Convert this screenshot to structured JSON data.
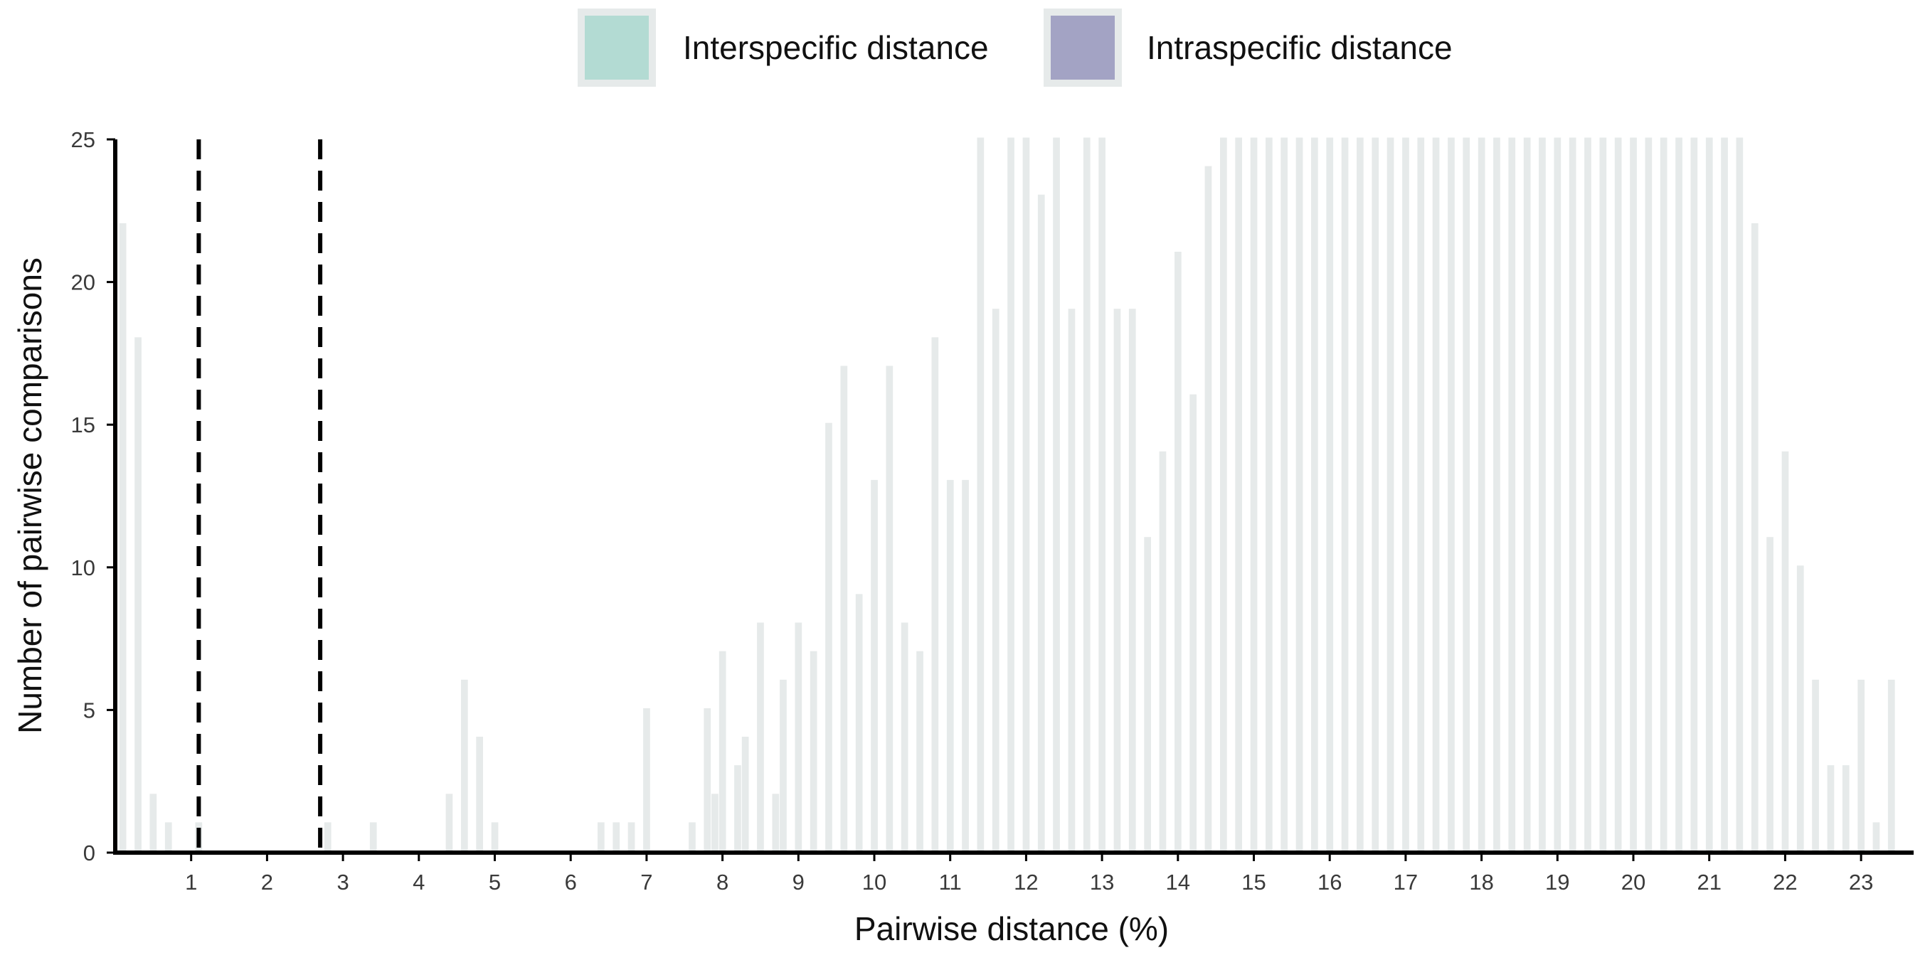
{
  "chart_data": {
    "type": "bar",
    "xlabel": "Pairwise distance (%)",
    "ylabel": "Number of pairwise comparisons",
    "xlim": [
      0,
      23.7
    ],
    "ylim": [
      0,
      25
    ],
    "x_ticks": [
      1,
      2,
      3,
      4,
      5,
      6,
      7,
      8,
      9,
      10,
      11,
      12,
      13,
      14,
      15,
      16,
      17,
      18,
      19,
      20,
      21,
      22,
      23
    ],
    "y_ticks": [
      0,
      5,
      10,
      15,
      20,
      25
    ],
    "bin_width": 0.1,
    "grid": false,
    "legend_placement": "top-center",
    "threshold_lines": [
      1.1,
      2.7
    ],
    "series": [
      {
        "name": "Interspecific distance",
        "color": "#b3dbd3",
        "values": [
          [
            2.8,
            1
          ],
          [
            3.4,
            1
          ],
          [
            4.4,
            2
          ],
          [
            4.6,
            6
          ],
          [
            4.8,
            4
          ],
          [
            5.0,
            1
          ],
          [
            6.4,
            1
          ],
          [
            6.6,
            1
          ],
          [
            6.8,
            1
          ],
          [
            7.0,
            5
          ],
          [
            7.6,
            1
          ],
          [
            7.8,
            5
          ],
          [
            7.9,
            2
          ],
          [
            8.0,
            7
          ],
          [
            8.2,
            3
          ],
          [
            8.3,
            4
          ],
          [
            8.5,
            8
          ],
          [
            8.7,
            2
          ],
          [
            8.8,
            6
          ],
          [
            9.0,
            8
          ],
          [
            9.2,
            7
          ],
          [
            9.4,
            15
          ],
          [
            9.6,
            17
          ],
          [
            9.8,
            9
          ],
          [
            10.0,
            13
          ],
          [
            10.2,
            17
          ],
          [
            10.4,
            8
          ],
          [
            10.6,
            7
          ],
          [
            10.8,
            18
          ],
          [
            11.0,
            13
          ],
          [
            11.2,
            13
          ],
          [
            11.4,
            25
          ],
          [
            11.6,
            19
          ],
          [
            11.8,
            25
          ],
          [
            12.0,
            25
          ],
          [
            12.2,
            23
          ],
          [
            12.4,
            25
          ],
          [
            12.6,
            19
          ],
          [
            12.8,
            25
          ],
          [
            13.0,
            25
          ],
          [
            13.2,
            19
          ],
          [
            13.4,
            19
          ],
          [
            13.6,
            11
          ],
          [
            13.8,
            14
          ],
          [
            14.0,
            21
          ],
          [
            14.2,
            16
          ],
          [
            14.4,
            24
          ],
          [
            14.6,
            25
          ],
          [
            14.8,
            25
          ],
          [
            15.0,
            25
          ],
          [
            15.2,
            25
          ],
          [
            15.4,
            25
          ],
          [
            15.6,
            25
          ],
          [
            15.8,
            25
          ],
          [
            16.0,
            25
          ],
          [
            16.2,
            25
          ],
          [
            16.4,
            25
          ],
          [
            16.6,
            25
          ],
          [
            16.8,
            25
          ],
          [
            17.0,
            25
          ],
          [
            17.2,
            25
          ],
          [
            17.4,
            25
          ],
          [
            17.6,
            25
          ],
          [
            17.8,
            25
          ],
          [
            18.0,
            25
          ],
          [
            18.2,
            25
          ],
          [
            18.4,
            25
          ],
          [
            18.6,
            25
          ],
          [
            18.8,
            25
          ],
          [
            19.0,
            25
          ],
          [
            19.2,
            25
          ],
          [
            19.4,
            25
          ],
          [
            19.6,
            25
          ],
          [
            19.8,
            25
          ],
          [
            20.0,
            25
          ],
          [
            20.2,
            25
          ],
          [
            20.4,
            25
          ],
          [
            20.6,
            25
          ],
          [
            20.8,
            25
          ],
          [
            21.0,
            25
          ],
          [
            21.2,
            25
          ],
          [
            21.4,
            25
          ],
          [
            21.6,
            22
          ],
          [
            21.8,
            11
          ],
          [
            22.0,
            14
          ],
          [
            22.2,
            10
          ],
          [
            22.4,
            6
          ],
          [
            22.6,
            3
          ],
          [
            22.8,
            3
          ],
          [
            23.0,
            6
          ],
          [
            23.2,
            1
          ],
          [
            23.4,
            6
          ]
        ]
      },
      {
        "name": "Intraspecific distance",
        "color": "#a3a3c4",
        "values": [
          [
            0.1,
            22
          ],
          [
            0.3,
            18
          ],
          [
            0.5,
            2
          ],
          [
            0.7,
            1
          ],
          [
            1.1,
            1
          ]
        ]
      }
    ]
  }
}
